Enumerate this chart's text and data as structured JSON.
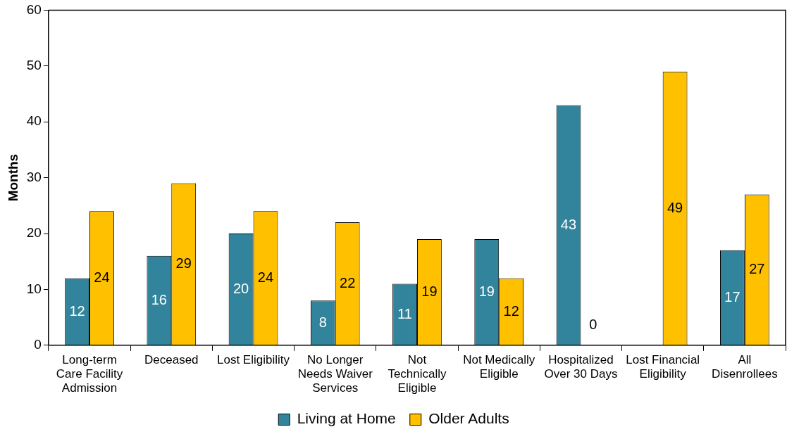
{
  "chart_data": {
    "type": "bar",
    "ylabel": "Months",
    "categories": [
      "Long-term Care Facility Admission",
      "Deceased",
      "Lost Eligibility",
      "No Longer Needs Waiver Services",
      "Not Technically Eligible",
      "Not Medically Eligible",
      "Hospitalized Over 30 Days",
      "Lost Financial Eligibility",
      "All Disenrollees"
    ],
    "series": [
      {
        "name": "Living at Home",
        "color": "#31849b",
        "values": [
          12,
          16,
          20,
          8,
          11,
          19,
          43,
          null,
          17
        ]
      },
      {
        "name": "Older Adults",
        "color": "#ffc000",
        "values": [
          24,
          29,
          24,
          22,
          19,
          12,
          0,
          49,
          27
        ]
      }
    ],
    "ylim": [
      0,
      60
    ],
    "yticks": [
      0,
      10,
      20,
      30,
      40,
      50,
      60
    ],
    "grid": false,
    "legend": "bottom",
    "data_labels": true
  }
}
